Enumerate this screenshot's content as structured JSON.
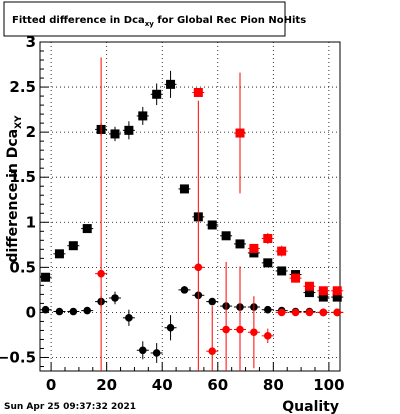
{
  "chart_data": {
    "type": "scatter",
    "title": "Fitted difference in Dca",
    "title_subscript": "xy",
    "title_suffix": " for Global Rec Pion NoHits",
    "xlabel": "Quality",
    "ylabel": "difference in Dca",
    "ylabel_subscript": "XY",
    "footer": "Sun Apr 25 09:37:32 2021",
    "xlim": [
      -4,
      104
    ],
    "ylim": [
      -0.65,
      3.0
    ],
    "x_ticks": [
      0,
      20,
      40,
      60,
      80,
      100
    ],
    "y_ticks": [
      -0.5,
      0,
      0.5,
      1,
      1.5,
      2,
      2.5,
      3
    ],
    "x_tick_labels": [
      "0",
      "20",
      "40",
      "60",
      "80",
      "100"
    ],
    "y_tick_labels": [
      "−0.5",
      "0",
      "0.5",
      "1",
      "1.5",
      "2",
      "2.5",
      "3"
    ],
    "grid": true,
    "series": [
      {
        "color": "#000000",
        "marker": "square",
        "x": [
          -2,
          3,
          8,
          13,
          18,
          23,
          28,
          33,
          38,
          43,
          48,
          53,
          58,
          63,
          68,
          73,
          78,
          83,
          88,
          93,
          98,
          103
        ],
        "y": [
          0.39,
          0.65,
          0.74,
          0.93,
          2.03,
          1.98,
          2.02,
          2.18,
          2.42,
          2.53,
          1.37,
          1.06,
          0.97,
          0.85,
          0.76,
          0.66,
          0.55,
          0.46,
          0.42,
          0.22,
          0.17,
          0.17
        ],
        "err": [
          0.03,
          0.03,
          0.03,
          0.04,
          0.07,
          0.08,
          0.1,
          0.1,
          0.12,
          0.15,
          0.04,
          0.03,
          0.03,
          0.03,
          0.03,
          0.03,
          0.03,
          0.03,
          0.03,
          0.03,
          0.03,
          0.03
        ]
      },
      {
        "color": "#ff0000",
        "marker": "square",
        "x": [
          53,
          68,
          73,
          78,
          83,
          88,
          93,
          98,
          103
        ],
        "y": [
          2.44,
          1.99,
          0.71,
          0.82,
          0.68,
          0.38,
          0.29,
          0.24,
          0.24
        ],
        "err": [
          0.0,
          0.67,
          0.05,
          0.06,
          0.06,
          0.04,
          0.04,
          0.04,
          0.04
        ]
      },
      {
        "color": "#000000",
        "marker": "circle",
        "x": [
          -2,
          3,
          8,
          13,
          18,
          23,
          28,
          33,
          38,
          43,
          48,
          53,
          58,
          63,
          68,
          73,
          78,
          83,
          88,
          93,
          98,
          103
        ],
        "y": [
          0.03,
          0.01,
          0.01,
          0.02,
          0.12,
          0.16,
          -0.06,
          -0.42,
          -0.45,
          -0.17,
          0.25,
          0.19,
          0.12,
          0.07,
          0.06,
          0.06,
          0.03,
          0.02,
          0.01,
          0.01,
          0.0,
          0.0
        ],
        "err": [
          0.02,
          0.02,
          0.02,
          0.02,
          0.06,
          0.07,
          0.09,
          0.1,
          0.11,
          0.14,
          0.04,
          0.03,
          0.03,
          0.03,
          0.03,
          0.03,
          0.02,
          0.02,
          0.02,
          0.02,
          0.02,
          0.02
        ]
      },
      {
        "color": "#ff0000",
        "marker": "circle",
        "x": [
          18,
          53,
          58,
          63,
          68,
          73,
          78,
          83,
          88,
          93,
          98,
          103
        ],
        "y": [
          0.43,
          0.5,
          -0.43,
          -0.19,
          -0.19,
          -0.22,
          -0.26,
          0.0,
          0.0,
          0.0,
          0.0,
          0.0
        ],
        "err": [
          2.4,
          1.85,
          0.5,
          0.75,
          0.7,
          0.4,
          0.08,
          0.03,
          0.03,
          0.02,
          0.02,
          0.02
        ]
      }
    ]
  }
}
